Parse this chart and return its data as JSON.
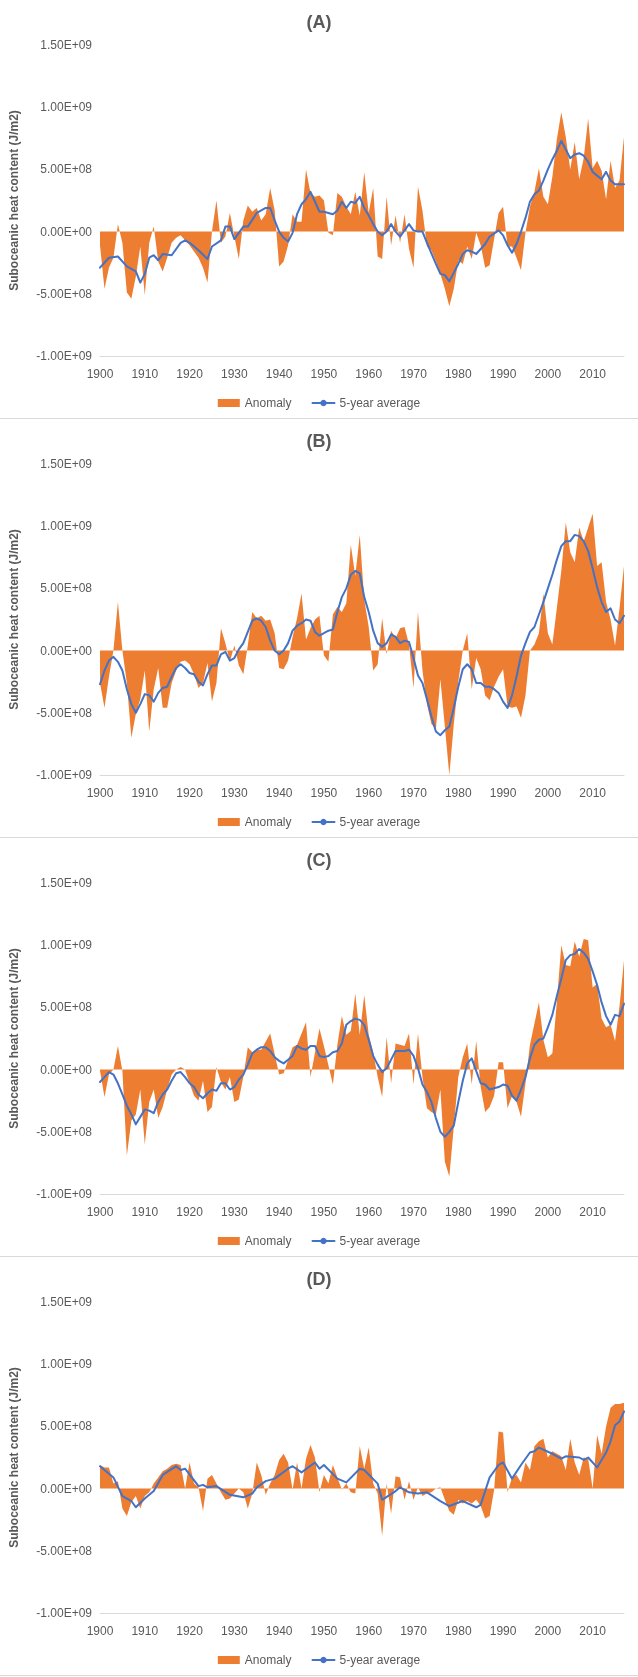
{
  "chart_data": [
    {
      "type": "area",
      "title": "(A)",
      "ylabel": "Suboceanic heat content (J/m2)",
      "legend": "bottom",
      "grid": false,
      "marker": "none",
      "line_style": "solid",
      "x": [
        1900,
        1901,
        1902,
        1903,
        1904,
        1905,
        1906,
        1907,
        1908,
        1909,
        1910,
        1911,
        1912,
        1913,
        1914,
        1915,
        1916,
        1917,
        1918,
        1919,
        1920,
        1921,
        1922,
        1923,
        1924,
        1925,
        1926,
        1927,
        1928,
        1929,
        1930,
        1931,
        1932,
        1933,
        1934,
        1935,
        1936,
        1937,
        1938,
        1939,
        1940,
        1941,
        1942,
        1943,
        1944,
        1945,
        1946,
        1947,
        1948,
        1949,
        1950,
        1951,
        1952,
        1953,
        1954,
        1955,
        1956,
        1957,
        1958,
        1959,
        1960,
        1961,
        1962,
        1963,
        1964,
        1965,
        1966,
        1967,
        1968,
        1969,
        1970,
        1971,
        1972,
        1973,
        1974,
        1975,
        1976,
        1977,
        1978,
        1979,
        1980,
        1981,
        1982,
        1983,
        1984,
        1985,
        1986,
        1987,
        1988,
        1989,
        1990,
        1991,
        1992,
        1993,
        1994,
        1995,
        1996,
        1997,
        1998,
        1999,
        2000,
        2001,
        2002,
        2003,
        2004,
        2005,
        2006,
        2007,
        2008,
        2009,
        2010,
        2011,
        2012,
        2013,
        2014,
        2015,
        2016,
        2017
      ],
      "xlim": [
        1900,
        2017
      ],
      "xticks": [
        1900,
        1910,
        1920,
        1930,
        1940,
        1950,
        1960,
        1970,
        1980,
        1990,
        2000,
        2010
      ],
      "ylim": [
        -1000000000.0,
        1500000000.0
      ],
      "yticks": [
        {
          "value": -1000000000.0,
          "label": "-1.00E+09"
        },
        {
          "value": -500000000.0,
          "label": "-5.00E+08"
        },
        {
          "value": 0,
          "label": "0.00E+00"
        },
        {
          "value": 500000000.0,
          "label": "5.00E+08"
        },
        {
          "value": 1000000000.0,
          "label": "1.00E+09"
        },
        {
          "value": 1500000000.0,
          "label": "1.50E+09"
        }
      ],
      "series": [
        {
          "name": "Anomaly",
          "color": "#ed7d31",
          "values": [
            -110000000.0,
            -460000000.0,
            -290000000.0,
            -210000000.0,
            60000000.0,
            -90000000.0,
            -490000000.0,
            -540000000.0,
            -360000000.0,
            -120000000.0,
            -510000000.0,
            -90000000.0,
            40000000.0,
            -240000000.0,
            -320000000.0,
            -210000000.0,
            -90000000.0,
            -50000000.0,
            -30000000.0,
            -70000000.0,
            -110000000.0,
            -160000000.0,
            -210000000.0,
            -290000000.0,
            -410000000.0,
            0,
            250000000.0,
            -90000000.0,
            -40000000.0,
            150000000.0,
            -40000000.0,
            -220000000.0,
            90000000.0,
            210000000.0,
            160000000.0,
            190000000.0,
            90000000.0,
            140000000.0,
            350000000.0,
            170000000.0,
            -280000000.0,
            -240000000.0,
            -110000000.0,
            140000000.0,
            80000000.0,
            80000000.0,
            500000000.0,
            310000000.0,
            280000000.0,
            290000000.0,
            250000000.0,
            -10000000.0,
            -30000000.0,
            310000000.0,
            280000000.0,
            200000000.0,
            140000000.0,
            320000000.0,
            130000000.0,
            480000000.0,
            150000000.0,
            350000000.0,
            -200000000.0,
            -220000000.0,
            280000000.0,
            -110000000.0,
            130000000.0,
            -90000000.0,
            140000000.0,
            -140000000.0,
            -290000000.0,
            360000000.0,
            170000000.0,
            -120000000.0,
            -150000000.0,
            -240000000.0,
            -340000000.0,
            -460000000.0,
            -600000000.0,
            -460000000.0,
            -230000000.0,
            -260000000.0,
            -120000000.0,
            -220000000.0,
            -10000000.0,
            -110000000.0,
            -290000000.0,
            -270000000.0,
            -60000000.0,
            150000000.0,
            200000000.0,
            -120000000.0,
            -120000000.0,
            -210000000.0,
            -310000000.0,
            -10000000.0,
            200000000.0,
            320000000.0,
            510000000.0,
            280000000.0,
            220000000.0,
            440000000.0,
            740000000.0,
            960000000.0,
            760000000.0,
            500000000.0,
            720000000.0,
            420000000.0,
            590000000.0,
            910000000.0,
            510000000.0,
            570000000.0,
            490000000.0,
            260000000.0,
            570000000.0,
            350000000.0,
            410000000.0,
            760000000.0
          ]
        },
        {
          "name": "5-year average",
          "type": "line",
          "color": "#4472c4",
          "x": [
            1900,
            1902,
            1904,
            1906,
            1908,
            1909,
            1910,
            1911,
            1912,
            1913,
            1914,
            1916,
            1918,
            1919,
            1920,
            1922,
            1924,
            1925,
            1927,
            1928,
            1929,
            1930,
            1932,
            1933,
            1935,
            1937,
            1938,
            1939,
            1940,
            1941,
            1942,
            1943,
            1944,
            1945,
            1946,
            1947,
            1948,
            1949,
            1950,
            1952,
            1953,
            1954,
            1955,
            1956,
            1957,
            1958,
            1959,
            1960,
            1961,
            1962,
            1963,
            1964,
            1965,
            1966,
            1967,
            1968,
            1969,
            1970,
            1971,
            1972,
            1973,
            1975,
            1976,
            1977,
            1978,
            1980,
            1981,
            1982,
            1983,
            1984,
            1985,
            1986,
            1987,
            1989,
            1990,
            1991,
            1992,
            1993,
            1994,
            1995,
            1996,
            1997,
            1998,
            1999,
            2000,
            2001,
            2002,
            2003,
            2004,
            2005,
            2006,
            2007,
            2008,
            2009,
            2010,
            2011,
            2012,
            2013,
            2014,
            2015,
            2017
          ],
          "values": [
            -290000000.0,
            -210000000.0,
            -200000000.0,
            -280000000.0,
            -320000000.0,
            -410000000.0,
            -340000000.0,
            -210000000.0,
            -190000000.0,
            -230000000.0,
            -180000000.0,
            -190000000.0,
            -90000000.0,
            -70000000.0,
            -90000000.0,
            -150000000.0,
            -220000000.0,
            -120000000.0,
            -70000000.0,
            40000000.0,
            40000000.0,
            -60000000.0,
            40000000.0,
            40000000.0,
            150000000.0,
            190000000.0,
            190000000.0,
            90000000.0,
            0,
            -50000000.0,
            -80000000.0,
            -10000000.0,
            140000000.0,
            220000000.0,
            260000000.0,
            320000000.0,
            240000000.0,
            160000000.0,
            160000000.0,
            140000000.0,
            170000000.0,
            240000000.0,
            190000000.0,
            240000000.0,
            230000000.0,
            280000000.0,
            190000000.0,
            130000000.0,
            60000000.0,
            0,
            -30000000.0,
            0,
            60000000.0,
            0,
            -40000000.0,
            10000000.0,
            60000000.0,
            10000000.0,
            0,
            0,
            -90000000.0,
            -260000000.0,
            -340000000.0,
            -350000000.0,
            -400000000.0,
            -260000000.0,
            -180000000.0,
            -150000000.0,
            -160000000.0,
            -180000000.0,
            -140000000.0,
            -100000000.0,
            -40000000.0,
            10000000.0,
            -30000000.0,
            -110000000.0,
            -170000000.0,
            -100000000.0,
            0,
            110000000.0,
            240000000.0,
            300000000.0,
            330000000.0,
            410000000.0,
            500000000.0,
            580000000.0,
            650000000.0,
            730000000.0,
            660000000.0,
            590000000.0,
            620000000.0,
            630000000.0,
            610000000.0,
            560000000.0,
            480000000.0,
            450000000.0,
            420000000.0,
            480000000.0,
            410000000.0,
            380000000.0,
            380000000.0
          ]
        }
      ]
    },
    {
      "type": "area",
      "title": "(B)",
      "ylabel": "Suboceanic heat content (J/m2)",
      "legend": "bottom",
      "grid": false,
      "marker": "none",
      "line_style": "solid",
      "x": [
        1900,
        1901,
        1902,
        1903,
        1904,
        1905,
        1906,
        1907,
        1908,
        1909,
        1910,
        1911,
        1912,
        1913,
        1914,
        1915,
        1916,
        1917,
        1918,
        1919,
        1920,
        1921,
        1922,
        1923,
        1924,
        1925,
        1926,
        1927,
        1928,
        1929,
        1930,
        1931,
        1932,
        1933,
        1934,
        1935,
        1936,
        1937,
        1938,
        1939,
        1940,
        1941,
        1942,
        1943,
        1944,
        1945,
        1946,
        1947,
        1948,
        1949,
        1950,
        1951,
        1952,
        1953,
        1954,
        1955,
        1956,
        1957,
        1958,
        1959,
        1960,
        1961,
        1962,
        1963,
        1964,
        1965,
        1966,
        1967,
        1968,
        1969,
        1970,
        1971,
        1972,
        1973,
        1974,
        1975,
        1976,
        1977,
        1978,
        1979,
        1980,
        1981,
        1982,
        1983,
        1984,
        1985,
        1986,
        1987,
        1988,
        1989,
        1990,
        1991,
        1992,
        1993,
        1994,
        1995,
        1996,
        1997,
        1998,
        1999,
        2000,
        2001,
        2002,
        2003,
        2004,
        2005,
        2006,
        2007,
        2008,
        2009,
        2010,
        2011,
        2012,
        2013,
        2014,
        2015,
        2016,
        2017
      ],
      "xlim": [
        1900,
        2017
      ],
      "xticks": [
        1900,
        1910,
        1920,
        1930,
        1940,
        1950,
        1960,
        1970,
        1980,
        1990,
        2000,
        2010
      ],
      "ylim": [
        -1000000000.0,
        1500000000.0
      ],
      "yticks": [
        {
          "value": -1000000000.0,
          "label": "-1.00E+09"
        },
        {
          "value": -500000000.0,
          "label": "-5.00E+08"
        },
        {
          "value": 0,
          "label": "0.00E+00"
        },
        {
          "value": 500000000.0,
          "label": "5.00E+08"
        },
        {
          "value": 1000000000.0,
          "label": "1.00E+09"
        },
        {
          "value": 1500000000.0,
          "label": "1.50E+09"
        }
      ],
      "series": [
        {
          "name": "Anomaly",
          "color": "#ed7d31",
          "values": [
            -260000000.0,
            -460000000.0,
            -210000000.0,
            0,
            390000000.0,
            0,
            -260000000.0,
            -700000000.0,
            -510000000.0,
            -390000000.0,
            -160000000.0,
            -650000000.0,
            -310000000.0,
            -140000000.0,
            -460000000.0,
            -460000000.0,
            -260000000.0,
            -160000000.0,
            -90000000.0,
            -80000000.0,
            -110000000.0,
            -190000000.0,
            -300000000.0,
            -260000000.0,
            -100000000.0,
            -410000000.0,
            -260000000.0,
            180000000.0,
            60000000.0,
            -90000000.0,
            40000000.0,
            -120000000.0,
            -190000000.0,
            40000000.0,
            310000000.0,
            260000000.0,
            280000000.0,
            240000000.0,
            250000000.0,
            140000000.0,
            -140000000.0,
            -150000000.0,
            -80000000.0,
            110000000.0,
            260000000.0,
            460000000.0,
            90000000.0,
            180000000.0,
            250000000.0,
            280000000.0,
            -40000000.0,
            -90000000.0,
            290000000.0,
            350000000.0,
            310000000.0,
            380000000.0,
            850000000.0,
            600000000.0,
            930000000.0,
            410000000.0,
            190000000.0,
            -160000000.0,
            -110000000.0,
            260000000.0,
            -30000000.0,
            160000000.0,
            100000000.0,
            180000000.0,
            190000000.0,
            50000000.0,
            -300000000.0,
            310000000.0,
            -160000000.0,
            -430000000.0,
            -590000000.0,
            -630000000.0,
            -230000000.0,
            -610000000.0,
            -1000000000.0,
            -590000000.0,
            -250000000.0,
            0,
            140000000.0,
            -310000000.0,
            -60000000.0,
            -150000000.0,
            -360000000.0,
            -400000000.0,
            -290000000.0,
            -210000000.0,
            -150000000.0,
            -450000000.0,
            -460000000.0,
            -450000000.0,
            -540000000.0,
            -360000000.0,
            0,
            50000000.0,
            140000000.0,
            460000000.0,
            140000000.0,
            50000000.0,
            340000000.0,
            640000000.0,
            1030000000.0,
            790000000.0,
            710000000.0,
            990000000.0,
            880000000.0,
            990000000.0,
            1100000000.0,
            680000000.0,
            710000000.0,
            390000000.0,
            250000000.0,
            40000000.0,
            340000000.0,
            680000000.0
          ]
        },
        {
          "name": "5-year average",
          "type": "line",
          "color": "#4472c4",
          "values": [
            -270000000.0,
            -160000000.0,
            -80000000.0,
            -50000000.0,
            -90000000.0,
            -160000000.0,
            -310000000.0,
            -430000000.0,
            -500000000.0,
            -430000000.0,
            -350000000.0,
            -360000000.0,
            -410000000.0,
            -340000000.0,
            -300000000.0,
            -290000000.0,
            -210000000.0,
            -140000000.0,
            -110000000.0,
            -140000000.0,
            -180000000.0,
            -190000000.0,
            -250000000.0,
            -280000000.0,
            -190000000.0,
            -120000000.0,
            -120000000.0,
            -30000000.0,
            -10000000.0,
            -80000000.0,
            -60000000.0,
            10000000.0,
            60000000.0,
            150000000.0,
            240000000.0,
            260000000.0,
            240000000.0,
            190000000.0,
            80000000.0,
            0,
            -30000000.0,
            0,
            60000000.0,
            160000000.0,
            200000000.0,
            220000000.0,
            250000000.0,
            240000000.0,
            150000000.0,
            120000000.0,
            140000000.0,
            160000000.0,
            170000000.0,
            310000000.0,
            430000000.0,
            500000000.0,
            610000000.0,
            640000000.0,
            620000000.0,
            430000000.0,
            310000000.0,
            160000000.0,
            60000000.0,
            30000000.0,
            60000000.0,
            130000000.0,
            110000000.0,
            60000000.0,
            80000000.0,
            70000000.0,
            -60000000.0,
            -200000000.0,
            -260000000.0,
            -390000000.0,
            -530000000.0,
            -650000000.0,
            -680000000.0,
            -640000000.0,
            -610000000.0,
            -460000000.0,
            -290000000.0,
            -150000000.0,
            -110000000.0,
            -150000000.0,
            -260000000.0,
            -260000000.0,
            -290000000.0,
            -290000000.0,
            -310000000.0,
            -340000000.0,
            -410000000.0,
            -460000000.0,
            -360000000.0,
            -210000000.0,
            -40000000.0,
            60000000.0,
            150000000.0,
            190000000.0,
            290000000.0,
            390000000.0,
            500000000.0,
            610000000.0,
            730000000.0,
            840000000.0,
            880000000.0,
            880000000.0,
            930000000.0,
            920000000.0,
            880000000.0,
            800000000.0,
            660000000.0,
            510000000.0,
            390000000.0,
            310000000.0,
            340000000.0,
            250000000.0,
            220000000.0,
            280000000.0
          ]
        }
      ]
    },
    {
      "type": "area",
      "title": "(C)",
      "ylabel": "Suboceanic heat content (J/m2)",
      "legend": "bottom",
      "grid": false,
      "marker": "none",
      "line_style": "solid",
      "x": [
        1900,
        1901,
        1902,
        1903,
        1904,
        1905,
        1906,
        1907,
        1908,
        1909,
        1910,
        1911,
        1912,
        1913,
        1914,
        1915,
        1916,
        1917,
        1918,
        1919,
        1920,
        1921,
        1922,
        1923,
        1924,
        1925,
        1926,
        1927,
        1928,
        1929,
        1930,
        1931,
        1932,
        1933,
        1934,
        1935,
        1936,
        1937,
        1938,
        1939,
        1940,
        1941,
        1942,
        1943,
        1944,
        1945,
        1946,
        1947,
        1948,
        1949,
        1950,
        1951,
        1952,
        1953,
        1954,
        1955,
        1956,
        1957,
        1958,
        1959,
        1960,
        1961,
        1962,
        1963,
        1964,
        1965,
        1966,
        1967,
        1968,
        1969,
        1970,
        1971,
        1972,
        1973,
        1974,
        1975,
        1976,
        1977,
        1978,
        1979,
        1980,
        1981,
        1982,
        1983,
        1984,
        1985,
        1986,
        1987,
        1988,
        1989,
        1990,
        1991,
        1992,
        1993,
        1994,
        1995,
        1996,
        1997,
        1998,
        1999,
        2000,
        2001,
        2002,
        2003,
        2004,
        2005,
        2006,
        2007,
        2008,
        2009,
        2010,
        2011,
        2012,
        2013,
        2014,
        2015,
        2016,
        2017
      ],
      "xlim": [
        1900,
        2017
      ],
      "xticks": [
        1900,
        1910,
        1920,
        1930,
        1940,
        1950,
        1960,
        1970,
        1980,
        1990,
        2000,
        2010
      ],
      "ylim": [
        -1000000000.0,
        1500000000.0
      ],
      "yticks": [
        {
          "value": -1000000000.0,
          "label": "-1.00E+09"
        },
        {
          "value": -500000000.0,
          "label": "-5.00E+08"
        },
        {
          "value": 0,
          "label": "0.00E+00"
        },
        {
          "value": 500000000.0,
          "label": "5.00E+08"
        },
        {
          "value": 1000000000.0,
          "label": "1.00E+09"
        },
        {
          "value": 1500000000.0,
          "label": "1.50E+09"
        }
      ],
      "series": [
        {
          "name": "Anomaly",
          "color": "#ed7d31",
          "x": [
            1900,
            1901,
            1902,
            1903,
            1904,
            1905,
            1906,
            1907,
            1908,
            1909,
            1910,
            1911,
            1912,
            1913,
            1914,
            1915,
            1916,
            1917,
            1918,
            1919,
            1920,
            1921,
            1922,
            1923,
            1924,
            1925,
            1926,
            1927,
            1928,
            1929,
            1930,
            1931,
            1932,
            1933,
            1934,
            1935,
            1936,
            1938,
            1940,
            1941,
            1943,
            1944,
            1946,
            1947,
            1949,
            1950,
            1952,
            1953,
            1954,
            1955,
            1956,
            1957,
            1958,
            1959,
            1960,
            1961,
            1962,
            1963,
            1964,
            1965,
            1966,
            1967,
            1968,
            1969,
            1970,
            1971,
            1972,
            1973,
            1974,
            1975,
            1976,
            1977,
            1978,
            1979,
            1980,
            1981,
            1982,
            1983,
            1984,
            1985,
            1986,
            1987,
            1988,
            1989,
            1990,
            1991,
            1992,
            1993,
            1994,
            1995,
            1996,
            1998,
            1999,
            2000,
            2001,
            2002,
            2003,
            2004,
            2005,
            2006,
            2007,
            2008,
            2009,
            2010,
            2011,
            2012,
            2013,
            2014,
            2015,
            2016,
            2017
          ],
          "values": [
            -10000000.0,
            -220000000.0,
            -40000000.0,
            0,
            190000000.0,
            -10000000.0,
            -690000000.0,
            -410000000.0,
            -360000000.0,
            -160000000.0,
            -600000000.0,
            -260000000.0,
            -160000000.0,
            -390000000.0,
            -300000000.0,
            -160000000.0,
            -40000000.0,
            0,
            20000000.0,
            0,
            -110000000.0,
            -210000000.0,
            -250000000.0,
            -90000000.0,
            -340000000.0,
            -300000000.0,
            20000000.0,
            -100000000.0,
            -160000000.0,
            -60000000.0,
            -260000000.0,
            -240000000.0,
            -60000000.0,
            180000000.0,
            140000000.0,
            160000000.0,
            160000000.0,
            290000000.0,
            -40000000.0,
            -30000000.0,
            180000000.0,
            200000000.0,
            380000000.0,
            -60000000.0,
            330000000.0,
            190000000.0,
            -120000000.0,
            200000000.0,
            430000000.0,
            280000000.0,
            310000000.0,
            610000000.0,
            280000000.0,
            600000000.0,
            280000000.0,
            140000000.0,
            -60000000.0,
            -220000000.0,
            260000000.0,
            -110000000.0,
            210000000.0,
            200000000.0,
            190000000.0,
            290000000.0,
            -120000000.0,
            290000000.0,
            -60000000.0,
            -310000000.0,
            -340000000.0,
            -360000000.0,
            -160000000.0,
            -740000000.0,
            -860000000.0,
            -460000000.0,
            -60000000.0,
            100000000.0,
            210000000.0,
            -120000000.0,
            230000000.0,
            -140000000.0,
            -340000000.0,
            -300000000.0,
            -210000000.0,
            60000000.0,
            60000000.0,
            -310000000.0,
            -210000000.0,
            -260000000.0,
            -380000000.0,
            -110000000.0,
            200000000.0,
            540000000.0,
            240000000.0,
            100000000.0,
            130000000.0,
            540000000.0,
            1000000000.0,
            840000000.0,
            830000000.0,
            1030000000.0,
            910000000.0,
            1050000000.0,
            1040000000.0,
            660000000.0,
            690000000.0,
            410000000.0,
            340000000.0,
            360000000.0,
            230000000.0,
            510000000.0,
            880000000.0
          ]
        },
        {
          "name": "5-year average",
          "type": "line",
          "color": "#4472c4",
          "values": [
            -100000000.0,
            -60000000.0,
            -20000000.0,
            -40000000.0,
            -110000000.0,
            -200000000.0,
            -290000000.0,
            -360000000.0,
            -440000000.0,
            -380000000.0,
            -320000000.0,
            -330000000.0,
            -350000000.0,
            -260000000.0,
            -200000000.0,
            -160000000.0,
            -90000000.0,
            -30000000.0,
            -20000000.0,
            -60000000.0,
            -110000000.0,
            -140000000.0,
            -200000000.0,
            -230000000.0,
            -190000000.0,
            -160000000.0,
            -170000000.0,
            -110000000.0,
            -110000000.0,
            -160000000.0,
            -140000000.0,
            -80000000.0,
            -40000000.0,
            40000000.0,
            130000000.0,
            160000000.0,
            180000000.0,
            180000000.0,
            150000000.0,
            100000000.0,
            70000000.0,
            50000000.0,
            80000000.0,
            110000000.0,
            190000000.0,
            170000000.0,
            160000000.0,
            190000000.0,
            190000000.0,
            110000000.0,
            100000000.0,
            110000000.0,
            140000000.0,
            150000000.0,
            210000000.0,
            360000000.0,
            390000000.0,
            410000000.0,
            400000000.0,
            360000000.0,
            240000000.0,
            110000000.0,
            40000000.0,
            -20000000.0,
            10000000.0,
            80000000.0,
            150000000.0,
            150000000.0,
            150000000.0,
            160000000.0,
            110000000.0,
            10000000.0,
            -120000000.0,
            -180000000.0,
            -260000000.0,
            -390000000.0,
            -500000000.0,
            -540000000.0,
            -500000000.0,
            -450000000.0,
            -260000000.0,
            -90000000.0,
            50000000.0,
            90000000.0,
            -10000000.0,
            -110000000.0,
            -120000000.0,
            -160000000.0,
            -150000000.0,
            -140000000.0,
            -120000000.0,
            -130000000.0,
            -210000000.0,
            -250000000.0,
            -160000000.0,
            -60000000.0,
            90000000.0,
            200000000.0,
            240000000.0,
            250000000.0,
            340000000.0,
            440000000.0,
            590000000.0,
            730000000.0,
            880000000.0,
            920000000.0,
            930000000.0,
            970000000.0,
            940000000.0,
            890000000.0,
            790000000.0,
            680000000.0,
            540000000.0,
            430000000.0,
            360000000.0,
            440000000.0,
            430000000.0,
            530000000.0
          ]
        }
      ]
    },
    {
      "type": "area",
      "title": "(D)",
      "ylabel": "Suboceanic heat content (J/m2)",
      "legend": "bottom",
      "grid": false,
      "marker": "none",
      "line_style": "solid",
      "x": [
        1900,
        1901,
        1902,
        1903,
        1904,
        1905,
        1906,
        1907,
        1908,
        1909,
        1910,
        1911,
        1912,
        1913,
        1914,
        1915,
        1916,
        1917,
        1918,
        1919,
        1920,
        1921,
        1922,
        1923,
        1924,
        1925,
        1926,
        1927,
        1928,
        1929,
        1930,
        1931,
        1932,
        1933,
        1934,
        1935,
        1936,
        1937,
        1938,
        1939,
        1940,
        1941,
        1942,
        1943,
        1944,
        1945,
        1946,
        1947,
        1948,
        1949,
        1950,
        1951,
        1952,
        1953,
        1954,
        1955,
        1956,
        1957,
        1958,
        1959,
        1960,
        1961,
        1962,
        1963,
        1964,
        1965,
        1966,
        1967,
        1968,
        1969,
        1970,
        1971,
        1972,
        1973,
        1974,
        1975,
        1976,
        1977,
        1978,
        1979,
        1980,
        1981,
        1982,
        1983,
        1984,
        1985,
        1986,
        1987,
        1988,
        1989,
        1990,
        1991,
        1992,
        1993,
        1994,
        1995,
        1996,
        1997,
        1998,
        1999,
        2000,
        2001,
        2002,
        2003,
        2004,
        2005,
        2006,
        2007,
        2008,
        2009,
        2010,
        2011,
        2012,
        2013,
        2014,
        2015,
        2016,
        2017
      ],
      "xlim": [
        1900,
        2017
      ],
      "xticks": [
        1900,
        1910,
        1920,
        1930,
        1940,
        1950,
        1960,
        1970,
        1980,
        1990,
        2000,
        2010
      ],
      "ylim": [
        -1000000000.0,
        1500000000.0
      ],
      "yticks": [
        {
          "value": -1000000000.0,
          "label": "-1.00E+09"
        },
        {
          "value": -500000000.0,
          "label": "-5.00E+08"
        },
        {
          "value": 0,
          "label": "0.00E+00"
        },
        {
          "value": 500000000.0,
          "label": "5.00E+08"
        },
        {
          "value": 1000000000.0,
          "label": "1.00E+09"
        },
        {
          "value": 1500000000.0,
          "label": "1.50E+09"
        }
      ],
      "series": [
        {
          "name": "Anomaly",
          "color": "#ed7d31",
          "values": [
            190000000.0,
            170000000.0,
            170000000.0,
            40000000.0,
            60000000.0,
            -160000000.0,
            -220000000.0,
            -110000000.0,
            -60000000.0,
            -160000000.0,
            -60000000.0,
            -30000000.0,
            40000000.0,
            90000000.0,
            140000000.0,
            160000000.0,
            190000000.0,
            200000000.0,
            190000000.0,
            0,
            210000000.0,
            40000000.0,
            10000000.0,
            -180000000.0,
            80000000.0,
            110000000.0,
            40000000.0,
            -30000000.0,
            -90000000.0,
            -80000000.0,
            -40000000.0,
            0,
            -30000000.0,
            -160000000.0,
            -40000000.0,
            210000000.0,
            110000000.0,
            -50000000.0,
            40000000.0,
            110000000.0,
            230000000.0,
            280000000.0,
            210000000.0,
            -10000000.0,
            210000000.0,
            0,
            240000000.0,
            350000000.0,
            250000000.0,
            -30000000.0,
            110000000.0,
            40000000.0,
            190000000.0,
            90000000.0,
            -10000000.0,
            40000000.0,
            -30000000.0,
            -40000000.0,
            340000000.0,
            160000000.0,
            330000000.0,
            40000000.0,
            -40000000.0,
            -380000000.0,
            40000000.0,
            -200000000.0,
            100000000.0,
            90000000.0,
            -90000000.0,
            60000000.0,
            -90000000.0,
            10000000.0,
            -60000000.0,
            -40000000.0,
            -30000000.0,
            0,
            10000000.0,
            -90000000.0,
            -180000000.0,
            -210000000.0,
            -90000000.0,
            -120000000.0,
            -100000000.0,
            -120000000.0,
            -90000000.0,
            -140000000.0,
            -240000000.0,
            -220000000.0,
            -10000000.0,
            460000000.0,
            450000000.0,
            -30000000.0,
            90000000.0,
            110000000.0,
            50000000.0,
            210000000.0,
            150000000.0,
            340000000.0,
            380000000.0,
            400000000.0,
            250000000.0,
            300000000.0,
            280000000.0,
            260000000.0,
            150000000.0,
            400000000.0,
            210000000.0,
            110000000.0,
            250000000.0,
            240000000.0,
            0,
            430000000.0,
            280000000.0,
            500000000.0,
            650000000.0,
            680000000.0,
            680000000.0,
            690000000.0
          ]
        },
        {
          "name": "5-year average",
          "type": "line",
          "color": "#4472c4",
          "x": [
            1900,
            1903,
            1905,
            1907,
            1908,
            1910,
            1912,
            1914,
            1917,
            1918,
            1919,
            1922,
            1923,
            1924,
            1926,
            1929,
            1932,
            1934,
            1935,
            1937,
            1939,
            1942,
            1943,
            1945,
            1948,
            1949,
            1950,
            1953,
            1955,
            1958,
            1959,
            1962,
            1963,
            1966,
            1967,
            1969,
            1971,
            1973,
            1976,
            1978,
            1981,
            1984,
            1985,
            1987,
            1989,
            1990,
            1992,
            1994,
            1996,
            1997,
            1998,
            2001,
            2003,
            2004,
            2007,
            2008,
            2009,
            2011,
            2013,
            2014,
            2015,
            2016,
            2017
          ],
          "values": [
            180000000.0,
            90000000.0,
            -60000000.0,
            -100000000.0,
            -150000000.0,
            -80000000.0,
            -20000000.0,
            110000000.0,
            180000000.0,
            150000000.0,
            160000000.0,
            20000000.0,
            30000000.0,
            10000000.0,
            20000000.0,
            -50000000.0,
            -70000000.0,
            -40000000.0,
            10000000.0,
            60000000.0,
            80000000.0,
            160000000.0,
            180000000.0,
            130000000.0,
            210000000.0,
            160000000.0,
            190000000.0,
            80000000.0,
            50000000.0,
            160000000.0,
            150000000.0,
            40000000.0,
            -90000000.0,
            -20000000.0,
            10000000.0,
            -30000000.0,
            -40000000.0,
            -30000000.0,
            -100000000.0,
            -140000000.0,
            -100000000.0,
            -150000000.0,
            -130000000.0,
            90000000.0,
            190000000.0,
            210000000.0,
            80000000.0,
            190000000.0,
            290000000.0,
            300000000.0,
            330000000.0,
            280000000.0,
            240000000.0,
            260000000.0,
            250000000.0,
            230000000.0,
            250000000.0,
            170000000.0,
            290000000.0,
            380000000.0,
            510000000.0,
            540000000.0,
            620000000.0
          ]
        }
      ]
    }
  ]
}
